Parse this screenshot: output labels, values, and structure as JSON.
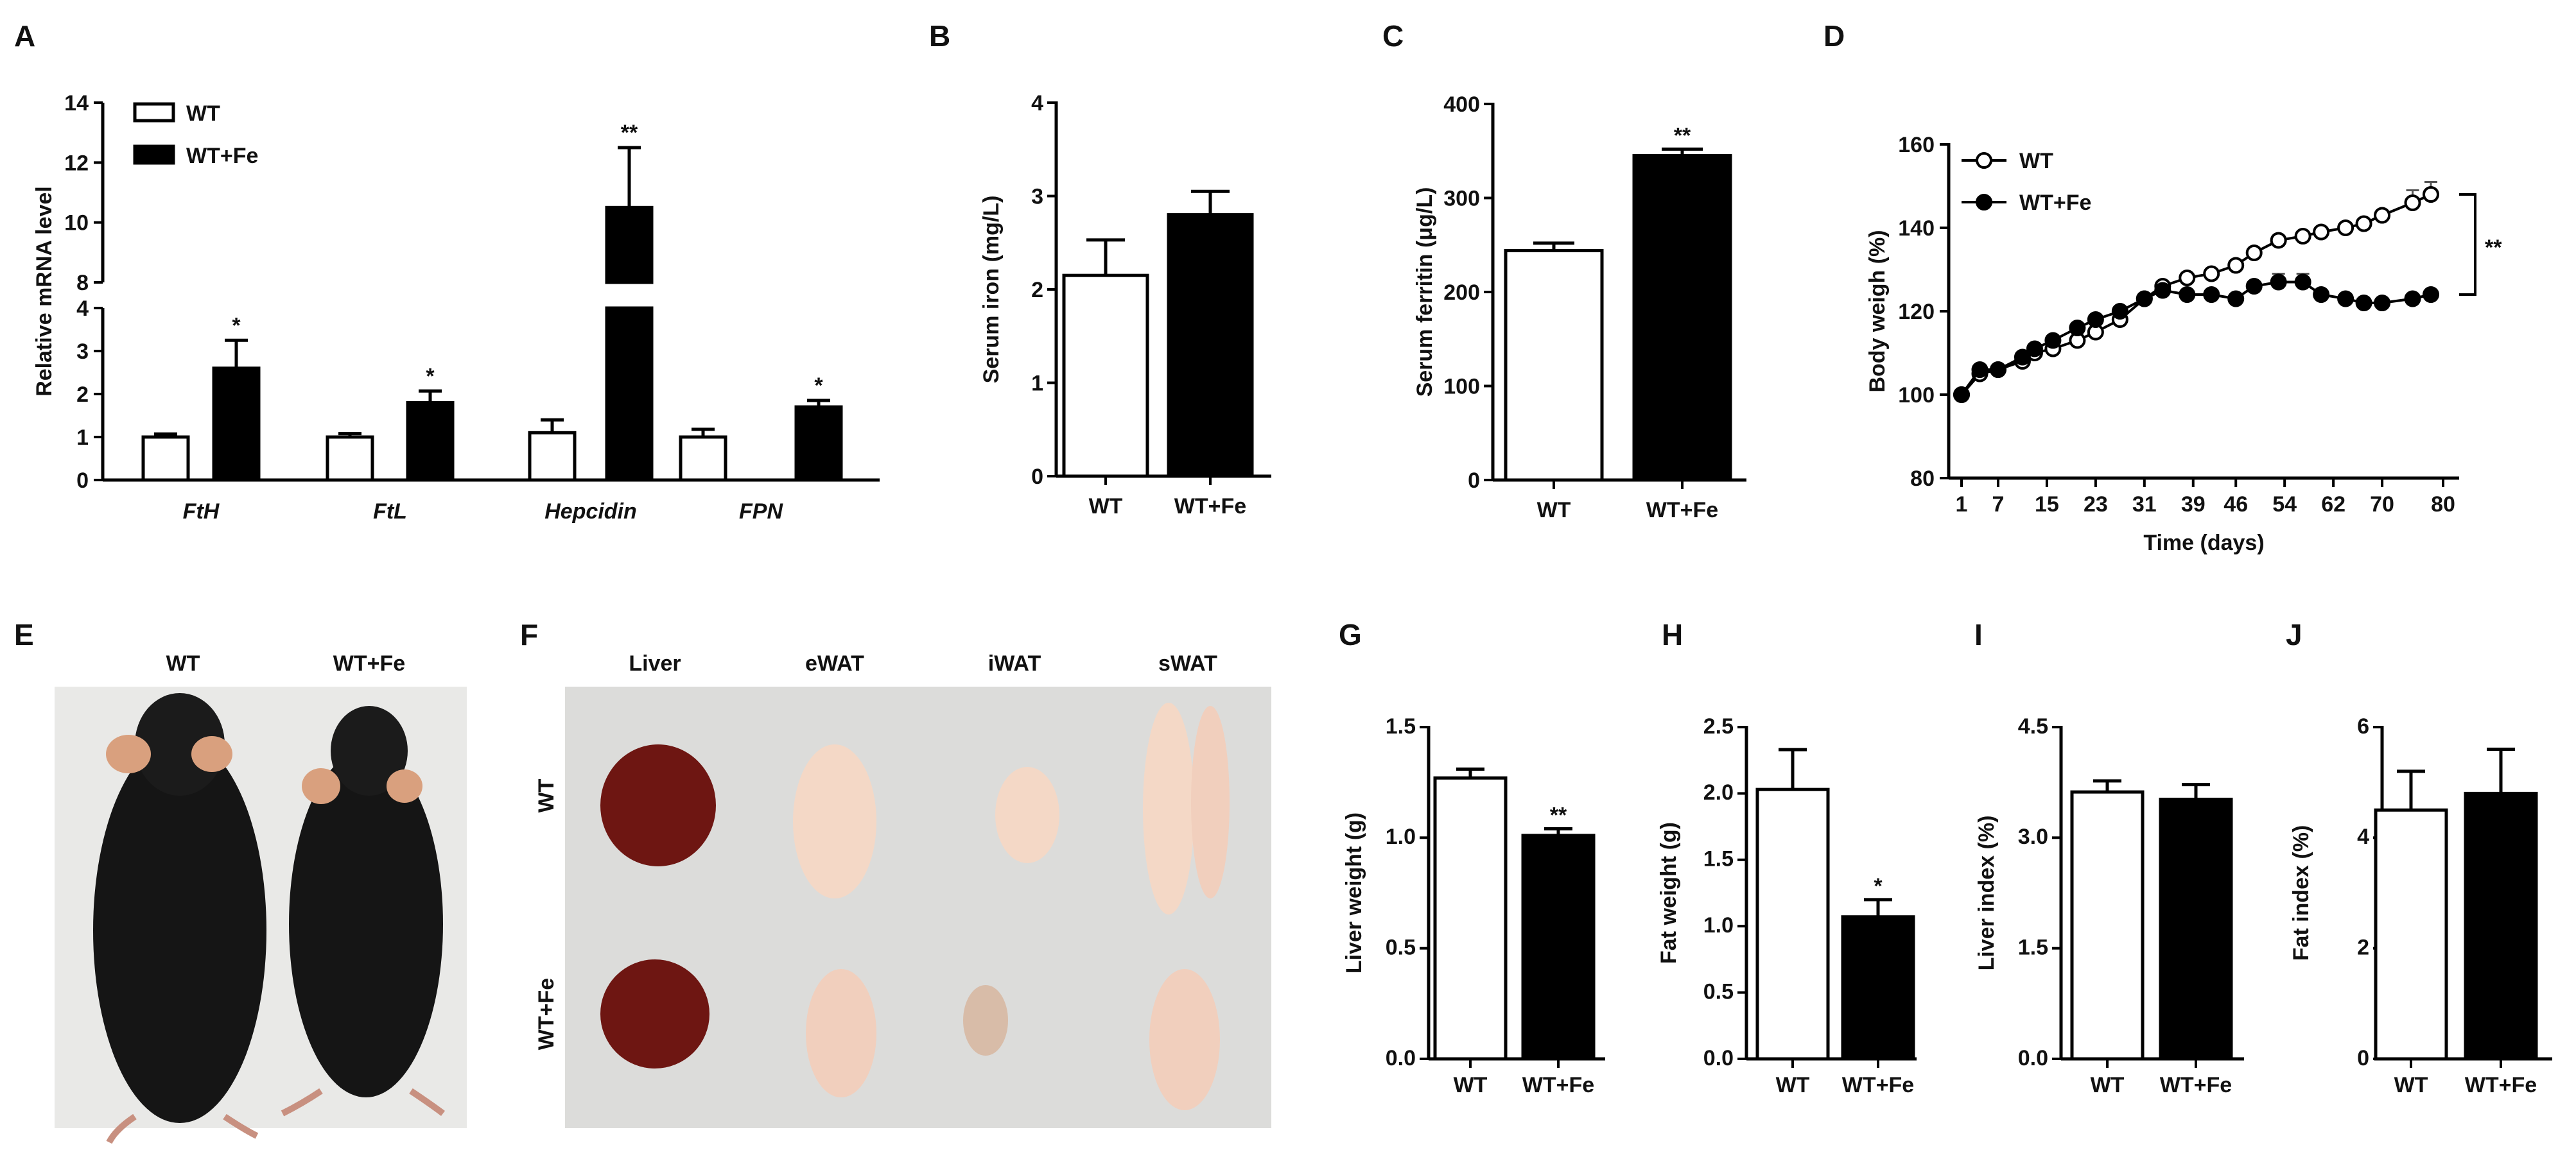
{
  "panel_labels": {
    "A": "A",
    "B": "B",
    "C": "C",
    "D": "D",
    "E": "E",
    "F": "F",
    "G": "G",
    "H": "H",
    "I": "I",
    "J": "J"
  },
  "photo_e": {
    "col_labels": [
      "WT",
      "WT+Fe"
    ],
    "colors": {
      "background": "#e9e9e7",
      "fur": "#151515",
      "ear": "#d9a07e"
    }
  },
  "photo_f": {
    "col_labels": [
      "Liver",
      "eWAT",
      "iWAT",
      "sWAT"
    ],
    "row_labels": [
      "WT",
      "WT+Fe"
    ],
    "colors": {
      "background": "#dcdcda",
      "liver": "#6e1612",
      "fat": "#f4d8c6"
    }
  },
  "colors": {
    "wt_fill": "#ffffff",
    "fe_fill": "#000000",
    "axis": "#000000"
  },
  "chart_data": [
    {
      "id": "A",
      "type": "bar",
      "ylabel": "Relative mRNA level",
      "xlabel": "",
      "categories": [
        "FtH",
        "FtL",
        "Hepcidin",
        "FPN"
      ],
      "ylim_lower": [
        0,
        4
      ],
      "ylim_upper": [
        8,
        14
      ],
      "yaxis_break": true,
      "yticks": [
        "0",
        "1",
        "2",
        "3",
        "4",
        "8",
        "10",
        "12",
        "14"
      ],
      "legend": [
        "WT",
        "WT+Fe"
      ],
      "legend_position": "top-left",
      "series": [
        {
          "name": "WT",
          "values": [
            1.0,
            1.0,
            1.1,
            1.0
          ],
          "errors": [
            0.07,
            0.08,
            0.3,
            0.18
          ]
        },
        {
          "name": "WT+Fe",
          "values": [
            2.6,
            1.8,
            10.5,
            1.7
          ],
          "errors": [
            0.65,
            0.27,
            2.0,
            0.15
          ]
        }
      ],
      "significance": [
        "*",
        "*",
        "**",
        "*"
      ]
    },
    {
      "id": "B",
      "type": "bar",
      "ylabel": "Serum iron (mg/L)",
      "categories": [
        "WT",
        "WT+Fe"
      ],
      "values": [
        2.15,
        2.8
      ],
      "errors": [
        0.38,
        0.25
      ],
      "ylim": [
        0,
        4
      ],
      "yticks": [
        "0",
        "1",
        "2",
        "3",
        "4"
      ],
      "significance": [
        "",
        ""
      ]
    },
    {
      "id": "C",
      "type": "bar",
      "ylabel": "Serum ferritin (μg/L)",
      "categories": [
        "WT",
        "WT+Fe"
      ],
      "values": [
        244,
        345
      ],
      "errors": [
        8,
        7
      ],
      "ylim": [
        0,
        400
      ],
      "yticks": [
        "0",
        "100",
        "200",
        "300",
        "400"
      ],
      "significance": [
        "",
        "**"
      ]
    },
    {
      "id": "D",
      "type": "line",
      "ylabel": "Body weigh (%)",
      "xlabel": "Time (days)",
      "xticks": [
        "1",
        "7",
        "15",
        "23",
        "31",
        "39",
        "46",
        "54",
        "62",
        "70",
        "80"
      ],
      "yticks": [
        "80",
        "100",
        "120",
        "140",
        "160"
      ],
      "ylim": [
        80,
        160
      ],
      "legend": [
        "WT",
        "WT+Fe"
      ],
      "legend_position": "top-left",
      "significance": "**",
      "series": [
        {
          "name": "WT",
          "x": [
            1,
            4,
            7,
            11,
            13,
            16,
            20,
            23,
            27,
            31,
            34,
            38,
            42,
            46,
            49,
            53,
            57,
            60,
            64,
            67,
            70,
            75,
            78
          ],
          "y": [
            100,
            105,
            106,
            108,
            110,
            111,
            113,
            115,
            118,
            123,
            126,
            128,
            129,
            131,
            134,
            137,
            138,
            139,
            140,
            141,
            143,
            146,
            148
          ],
          "errors": [
            0,
            0,
            0,
            0,
            0,
            0,
            0,
            0,
            0,
            0,
            0,
            0,
            0,
            0,
            0,
            0,
            0,
            0,
            0,
            0,
            0,
            3,
            3
          ]
        },
        {
          "name": "WT+Fe",
          "x": [
            1,
            4,
            7,
            11,
            13,
            16,
            20,
            23,
            27,
            31,
            34,
            38,
            42,
            46,
            49,
            53,
            57,
            60,
            64,
            67,
            70,
            75,
            78
          ],
          "y": [
            100,
            106,
            106,
            109,
            111,
            113,
            116,
            118,
            120,
            123,
            125,
            124,
            124,
            123,
            126,
            127,
            127,
            124,
            123,
            122,
            122,
            123,
            124
          ],
          "errors": [
            0,
            0,
            0,
            0,
            0,
            0,
            0,
            0,
            0,
            0,
            0,
            0,
            0,
            0,
            0,
            2,
            2,
            0,
            0,
            0,
            0,
            0,
            0
          ]
        }
      ]
    },
    {
      "id": "G",
      "type": "bar",
      "ylabel": "Liver weight (g)",
      "categories": [
        "WT",
        "WT+Fe"
      ],
      "values": [
        1.27,
        1.01
      ],
      "errors": [
        0.04,
        0.03
      ],
      "ylim": [
        0,
        1.5
      ],
      "yticks": [
        "0.0",
        "0.5",
        "1.0",
        "1.5"
      ],
      "significance": [
        "",
        "**"
      ]
    },
    {
      "id": "H",
      "type": "bar",
      "ylabel": "Fat weight (g)",
      "categories": [
        "WT",
        "WT+Fe"
      ],
      "values": [
        2.03,
        1.07
      ],
      "errors": [
        0.3,
        0.13
      ],
      "ylim": [
        0,
        2.5
      ],
      "yticks": [
        "0.0",
        "0.5",
        "1.0",
        "1.5",
        "2.0",
        "2.5"
      ],
      "significance": [
        "",
        "*"
      ]
    },
    {
      "id": "I",
      "type": "bar",
      "ylabel": "Liver index (%)",
      "categories": [
        "WT",
        "WT+Fe"
      ],
      "values": [
        3.62,
        3.52
      ],
      "errors": [
        0.15,
        0.2
      ],
      "ylim": [
        0,
        4.5
      ],
      "yticks": [
        "0.0",
        "1.5",
        "3.0",
        "4.5"
      ],
      "significance": [
        "",
        ""
      ]
    },
    {
      "id": "J",
      "type": "bar",
      "ylabel": "Fat index (%)",
      "categories": [
        "WT",
        "WT+Fe"
      ],
      "values": [
        4.5,
        4.8
      ],
      "errors": [
        0.7,
        0.8
      ],
      "ylim": [
        0,
        6
      ],
      "yticks": [
        "0",
        "2",
        "4",
        "6"
      ],
      "significance": [
        "",
        ""
      ]
    }
  ]
}
